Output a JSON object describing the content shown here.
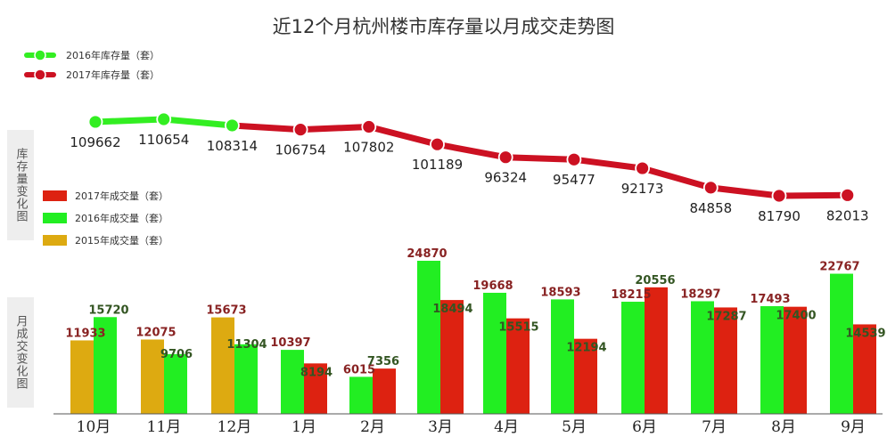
{
  "title": "近12个月杭州楼市库存量以月成交走势图",
  "side_labels": {
    "inventory": "库存量变化图",
    "deals": "月成交变化图"
  },
  "colors": {
    "inv_2016": "#33ee22",
    "inv_2017": "#cc1122",
    "deal_2017": "#dd2211",
    "deal_2016": "#22ee22",
    "deal_2015": "#ddaa11",
    "inv_label": "#222222",
    "deal_label_2015": "#882222",
    "deal_label_2016": "#335522",
    "deal_label_2017": "#882222"
  },
  "chart_data": [
    {
      "type": "line",
      "title": "",
      "categories": [
        "10月",
        "11月",
        "12月",
        "1月",
        "2月",
        "3月",
        "4月",
        "5月",
        "6月",
        "7月",
        "8月",
        "9月"
      ],
      "series": [
        {
          "name": "2016年库存量（套）",
          "values": [
            109662,
            110654,
            108314,
            null,
            null,
            null,
            null,
            null,
            null,
            null,
            null,
            null
          ]
        },
        {
          "name": "2017年库存量（套）",
          "values": [
            null,
            null,
            108314,
            106754,
            107802,
            101189,
            96324,
            95477,
            92173,
            84858,
            81790,
            82013
          ]
        }
      ],
      "data_labels": [
        "109662",
        "110654",
        "108314",
        "106754",
        "107802",
        "101189",
        "96324",
        "95477",
        "92173",
        "84858",
        "81790",
        "82013"
      ],
      "legend_position": "top-left"
    },
    {
      "type": "bar",
      "title": "",
      "categories": [
        "10月",
        "11月",
        "12月",
        "1月",
        "2月",
        "3月",
        "4月",
        "5月",
        "6月",
        "7月",
        "8月",
        "9月"
      ],
      "series": [
        {
          "name": "2017年成交量（套）",
          "values": [
            null,
            null,
            null,
            8194,
            7356,
            18494,
            15515,
            12194,
            20556,
            17287,
            17400,
            14539
          ]
        },
        {
          "name": "2016年成交量（套）",
          "values": [
            15720,
            9706,
            11304,
            10397,
            6015,
            24870,
            19668,
            18593,
            18215,
            18297,
            17493,
            22767
          ]
        },
        {
          "name": "2015年成交量（套）",
          "values": [
            11933,
            12075,
            15673,
            null,
            null,
            null,
            null,
            null,
            null,
            null,
            null,
            null
          ]
        }
      ],
      "legend_position": "middle-left"
    }
  ]
}
